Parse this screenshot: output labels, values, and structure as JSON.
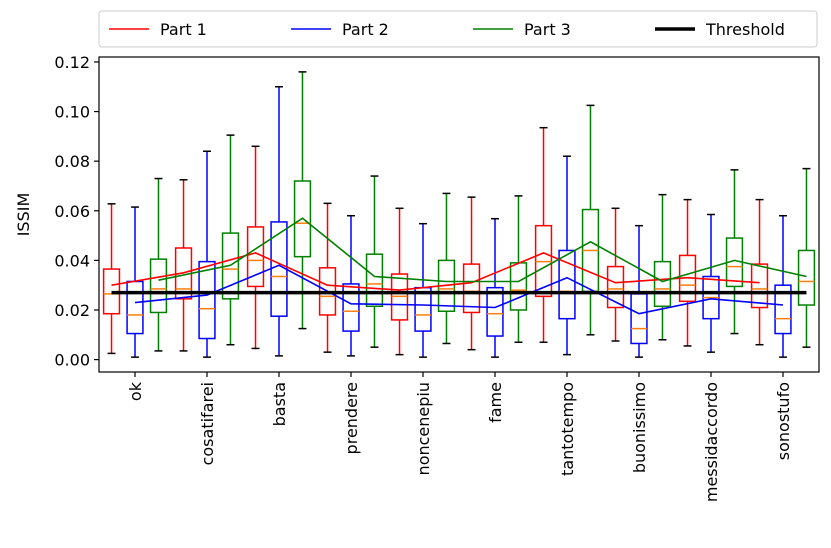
{
  "chart_data": {
    "type": "box",
    "ylabel": "ISSIM",
    "ylim": [
      -0.005,
      0.122
    ],
    "yticks": [
      "0.00",
      "0.02",
      "0.04",
      "0.06",
      "0.08",
      "0.10",
      "0.12"
    ],
    "ytick_values": [
      0.0,
      0.02,
      0.04,
      0.06,
      0.08,
      0.1,
      0.12
    ],
    "categories": [
      "ok",
      "cosatifarei",
      "basta",
      "prendere",
      "noncenepiu",
      "fame",
      "tantotempo",
      "buonissimo",
      "messidaccordo",
      "sonostufo"
    ],
    "legend_position": "top",
    "threshold": {
      "name": "Threshold",
      "value": 0.027,
      "color": "#000000"
    },
    "median_color": "#ff7f0e",
    "series": [
      {
        "name": "Part 1",
        "color": "#ff0000",
        "means": [
          0.03,
          0.035,
          0.043,
          0.03,
          0.028,
          0.031,
          0.043,
          0.031,
          0.033,
          0.031
        ],
        "boxes": [
          {
            "whislo": 0.0025,
            "q1": 0.0185,
            "med": 0.0265,
            "q3": 0.0365,
            "whishi": 0.0628
          },
          {
            "whislo": 0.0035,
            "q1": 0.0245,
            "med": 0.0285,
            "q3": 0.045,
            "whishi": 0.0725
          },
          {
            "whislo": 0.0045,
            "q1": 0.0295,
            "med": 0.04,
            "q3": 0.0535,
            "whishi": 0.086
          },
          {
            "whislo": 0.003,
            "q1": 0.018,
            "med": 0.0255,
            "q3": 0.037,
            "whishi": 0.063
          },
          {
            "whislo": 0.002,
            "q1": 0.016,
            "med": 0.0255,
            "q3": 0.0345,
            "whishi": 0.061
          },
          {
            "whislo": 0.004,
            "q1": 0.019,
            "med": 0.0275,
            "q3": 0.0385,
            "whishi": 0.0655
          },
          {
            "whislo": 0.007,
            "q1": 0.0255,
            "med": 0.0395,
            "q3": 0.054,
            "whishi": 0.0935
          },
          {
            "whislo": 0.0075,
            "q1": 0.021,
            "med": 0.0285,
            "q3": 0.0375,
            "whishi": 0.061
          },
          {
            "whislo": 0.0055,
            "q1": 0.0235,
            "med": 0.03,
            "q3": 0.042,
            "whishi": 0.0645
          },
          {
            "whislo": 0.006,
            "q1": 0.021,
            "med": 0.0285,
            "q3": 0.0385,
            "whishi": 0.0645
          }
        ]
      },
      {
        "name": "Part 2",
        "color": "#0000ff",
        "means": [
          0.023,
          0.026,
          0.038,
          0.0225,
          0.022,
          0.021,
          0.033,
          0.0185,
          0.0245,
          0.022
        ],
        "boxes": [
          {
            "whislo": 0.001,
            "q1": 0.0105,
            "med": 0.018,
            "q3": 0.0315,
            "whishi": 0.0615
          },
          {
            "whislo": 0.001,
            "q1": 0.0085,
            "med": 0.0205,
            "q3": 0.0395,
            "whishi": 0.084
          },
          {
            "whislo": 0.0015,
            "q1": 0.0175,
            "med": 0.0335,
            "q3": 0.0555,
            "whishi": 0.11
          },
          {
            "whislo": 0.0015,
            "q1": 0.0115,
            "med": 0.0195,
            "q3": 0.0305,
            "whishi": 0.058
          },
          {
            "whislo": 0.001,
            "q1": 0.0115,
            "med": 0.018,
            "q3": 0.029,
            "whishi": 0.0548
          },
          {
            "whislo": 0.001,
            "q1": 0.0095,
            "med": 0.0185,
            "q3": 0.029,
            "whishi": 0.0568
          },
          {
            "whislo": 0.002,
            "q1": 0.0165,
            "med": 0.0275,
            "q3": 0.044,
            "whishi": 0.082
          },
          {
            "whislo": 0.001,
            "q1": 0.0065,
            "med": 0.0125,
            "q3": 0.0265,
            "whishi": 0.054
          },
          {
            "whislo": 0.003,
            "q1": 0.0165,
            "med": 0.025,
            "q3": 0.0335,
            "whishi": 0.0585
          },
          {
            "whislo": 0.001,
            "q1": 0.0105,
            "med": 0.0165,
            "q3": 0.03,
            "whishi": 0.058
          }
        ]
      },
      {
        "name": "Part 3",
        "color": "#008000",
        "means": [
          0.032,
          0.038,
          0.057,
          0.0335,
          0.0315,
          0.0315,
          0.0475,
          0.0315,
          0.04,
          0.0335
        ],
        "boxes": [
          {
            "whislo": 0.0035,
            "q1": 0.019,
            "med": 0.0285,
            "q3": 0.0405,
            "whishi": 0.073
          },
          {
            "whislo": 0.006,
            "q1": 0.0245,
            "med": 0.0365,
            "q3": 0.051,
            "whishi": 0.0905
          },
          {
            "whislo": 0.0125,
            "q1": 0.0415,
            "med": 0.055,
            "q3": 0.072,
            "whishi": 0.116
          },
          {
            "whislo": 0.005,
            "q1": 0.0215,
            "med": 0.0305,
            "q3": 0.0425,
            "whishi": 0.074
          },
          {
            "whislo": 0.0065,
            "q1": 0.0195,
            "med": 0.0285,
            "q3": 0.04,
            "whishi": 0.067
          },
          {
            "whislo": 0.007,
            "q1": 0.02,
            "med": 0.028,
            "q3": 0.039,
            "whishi": 0.066
          },
          {
            "whislo": 0.01,
            "q1": 0.0275,
            "med": 0.044,
            "q3": 0.0605,
            "whishi": 0.1025
          },
          {
            "whislo": 0.008,
            "q1": 0.0215,
            "med": 0.0285,
            "q3": 0.0395,
            "whishi": 0.0665
          },
          {
            "whislo": 0.0105,
            "q1": 0.0295,
            "med": 0.0375,
            "q3": 0.049,
            "whishi": 0.0765
          },
          {
            "whislo": 0.005,
            "q1": 0.022,
            "med": 0.0315,
            "q3": 0.044,
            "whishi": 0.077
          }
        ]
      }
    ]
  }
}
